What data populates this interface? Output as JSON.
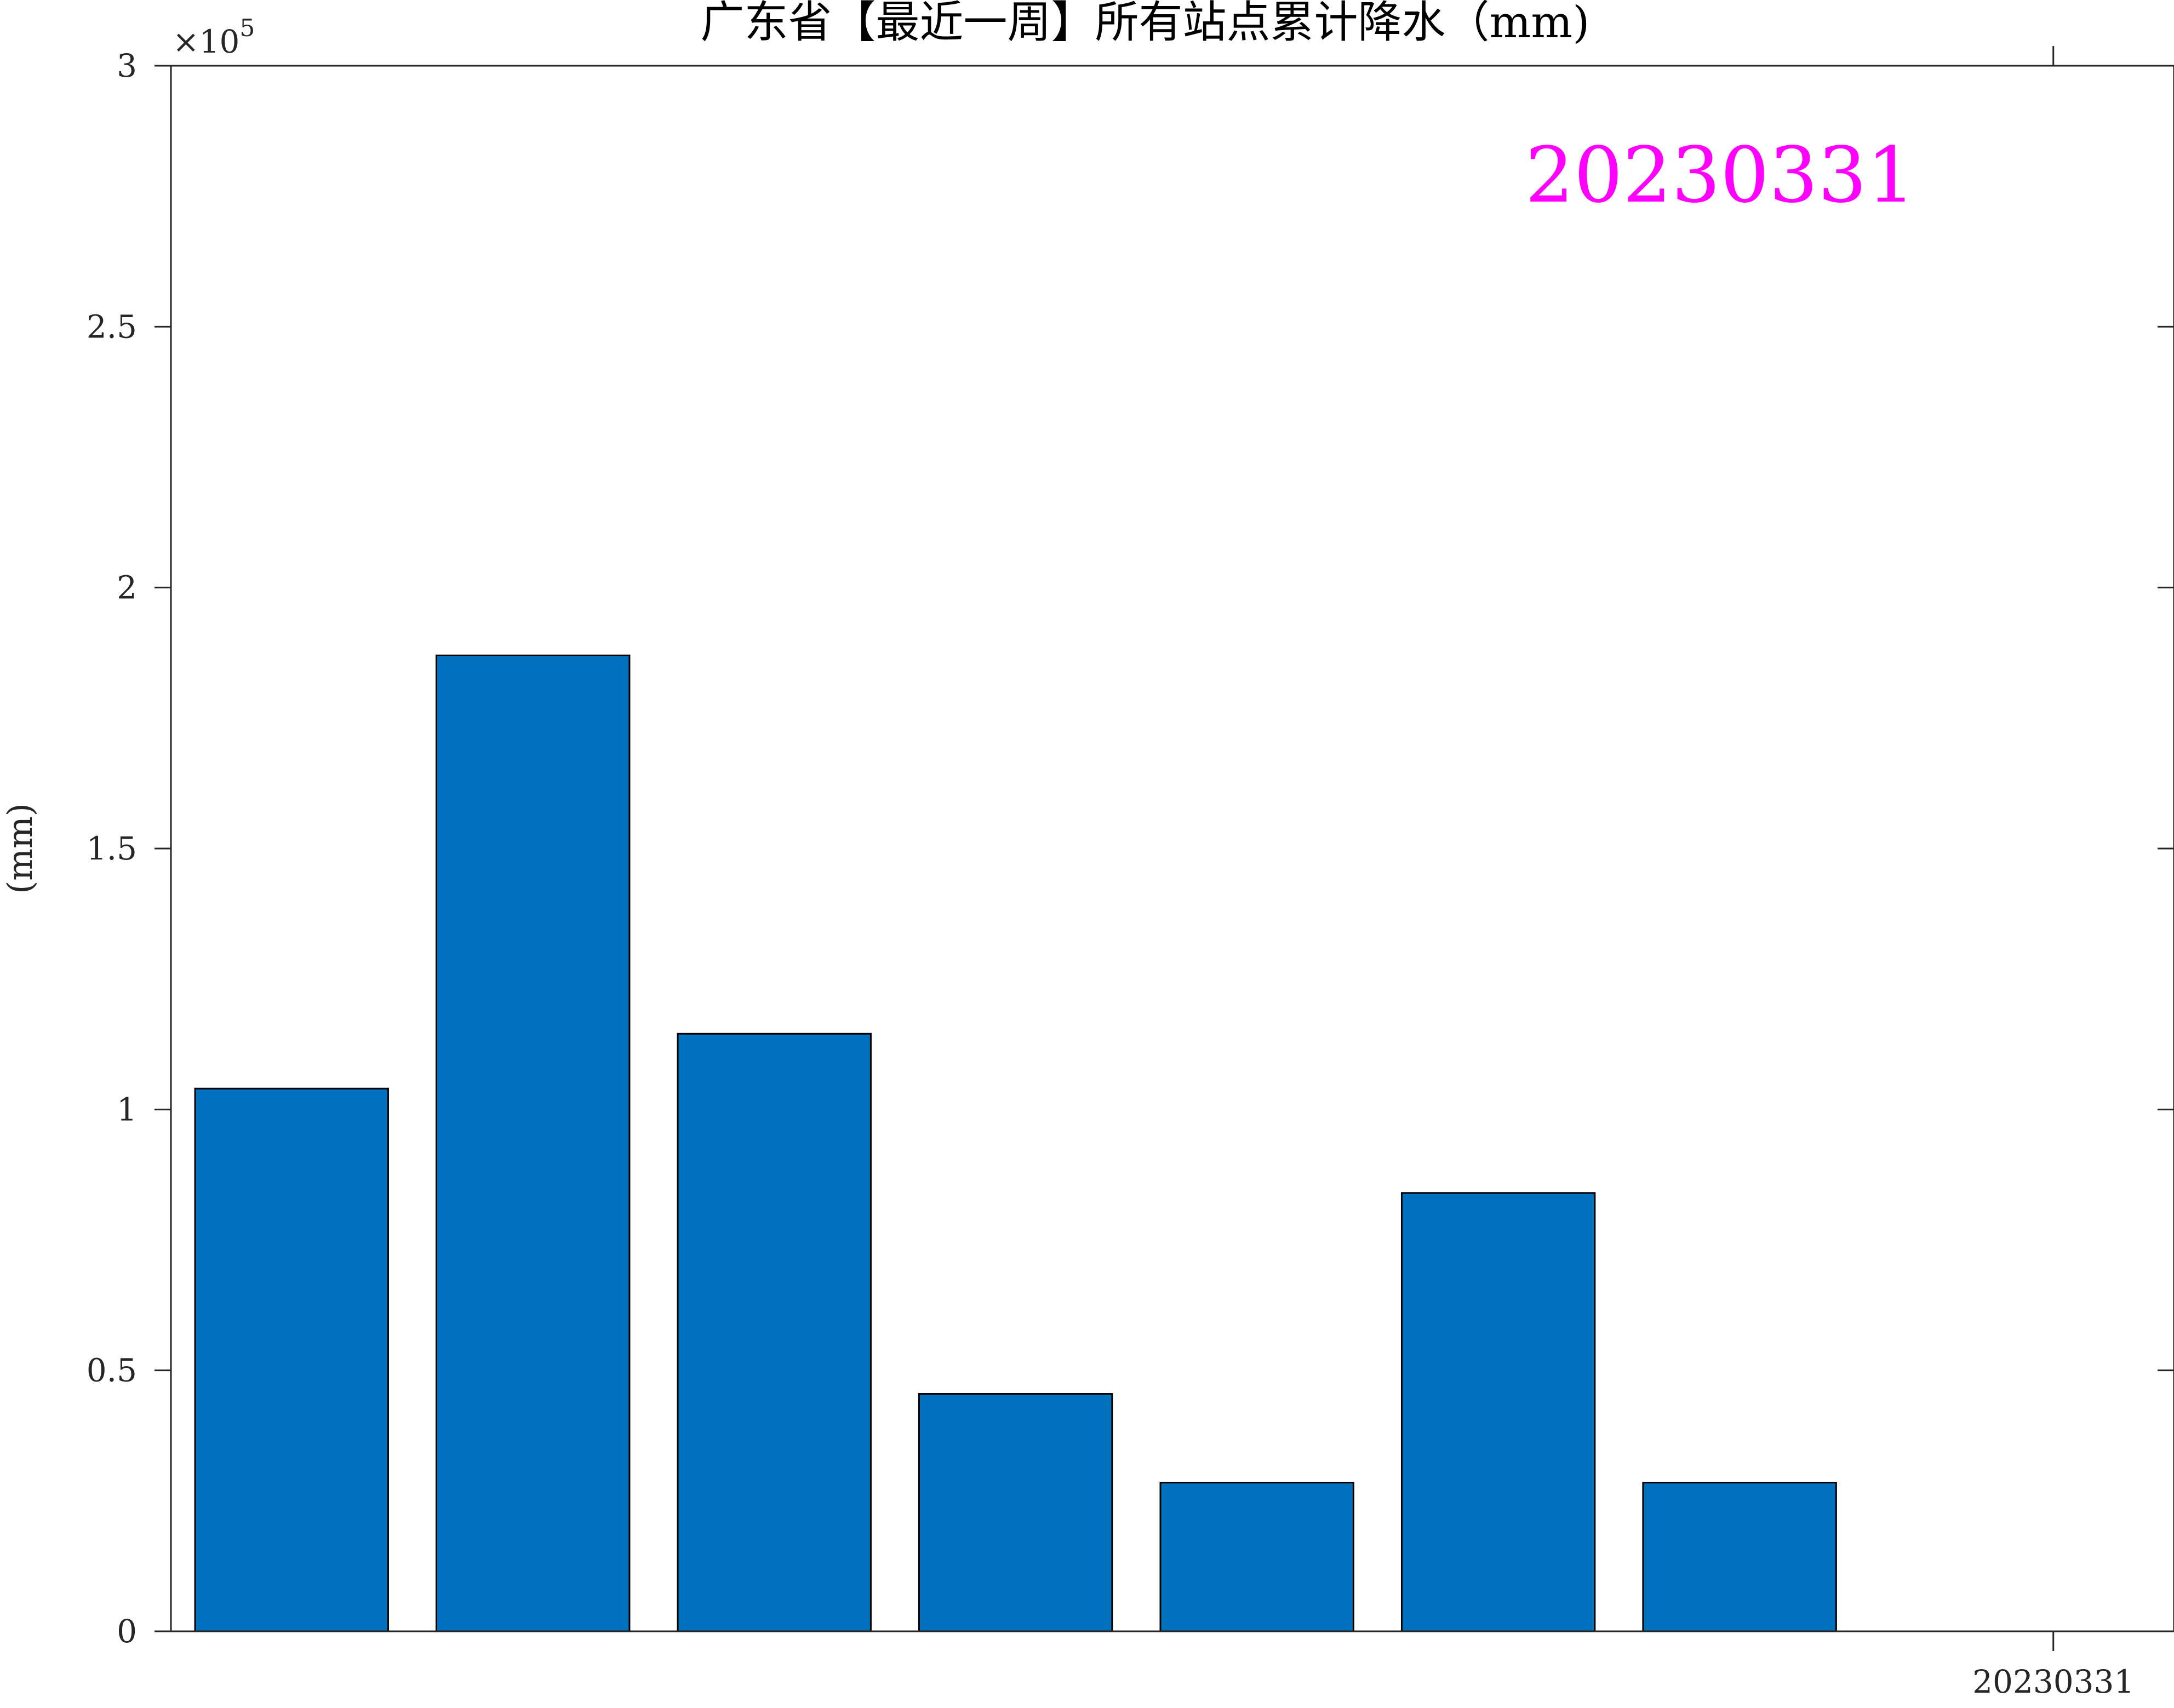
{
  "chart_data": {
    "type": "bar",
    "title": "广东省【最近一周】所有站点累计降水（mm)",
    "ylabel": "(mm)",
    "xlabel": "",
    "values": [
      104000,
      187000,
      114500,
      45500,
      28500,
      84000,
      28500
    ],
    "ylim": [
      0,
      300000
    ],
    "xlim": [
      0.5,
      8.8
    ],
    "y_ticks": [
      0,
      50000,
      100000,
      150000,
      200000,
      250000,
      300000
    ],
    "y_tick_labels": [
      "0",
      "0.5",
      "1",
      "1.5",
      "2",
      "2.5",
      "3"
    ],
    "y_exponent_label": "×10",
    "y_exponent_power": "5",
    "x_ticks": [
      8.3
    ],
    "x_tick_labels": [
      "20230331"
    ],
    "annotation": "20230331",
    "bar_color": "#0072BD",
    "bar_edge_color": "#000000",
    "annotation_color": "#FF00FF",
    "grid": false,
    "legend": "none"
  }
}
